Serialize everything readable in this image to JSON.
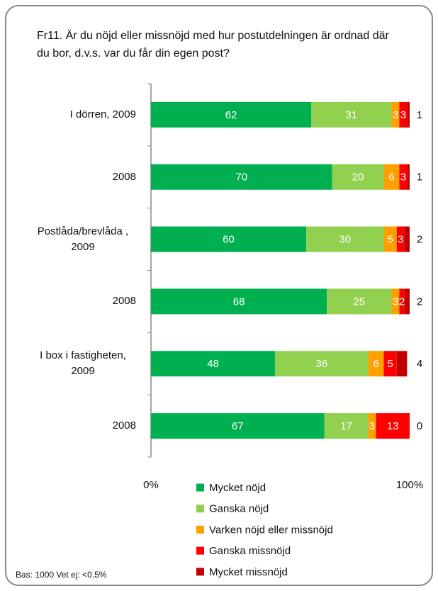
{
  "chart_data": {
    "type": "stacked_bar_horizontal",
    "title": "Fr11. Är du nöjd eller missnöjd med hur postutdelningen är ordnad där du bor, d.v.s. var du får din egen post?",
    "categories": [
      "I dörren, 2009",
      "2008",
      "Postlåda/brevlåda , 2009",
      "2008",
      "I box i fastigheten, 2009",
      "2008"
    ],
    "series": [
      {
        "name": "Mycket nöjd",
        "color": "#00b050",
        "values": [
          62,
          70,
          60,
          68,
          48,
          67
        ]
      },
      {
        "name": "Ganska nöjd",
        "color": "#92d050",
        "values": [
          31,
          20,
          30,
          25,
          36,
          17
        ]
      },
      {
        "name": "Varken nöjd eller missnöjd",
        "color": "#ff9f00",
        "values": [
          3,
          6,
          5,
          3,
          6,
          3
        ]
      },
      {
        "name": "Ganska missnöjd",
        "color": "#ff0000",
        "values": [
          3,
          3,
          3,
          2,
          5,
          13
        ]
      },
      {
        "name": "Mycket missnöjd",
        "color": "#c00000",
        "values": [
          1,
          1,
          2,
          2,
          4,
          0
        ],
        "label_position": "outside"
      }
    ],
    "xlim": [
      0,
      100
    ],
    "xticks": [
      {
        "value": 0,
        "label": "0%"
      },
      {
        "value": 100,
        "label": "100%"
      }
    ],
    "footnote": "Bas: 1000 Vet ej: <0,5%"
  }
}
